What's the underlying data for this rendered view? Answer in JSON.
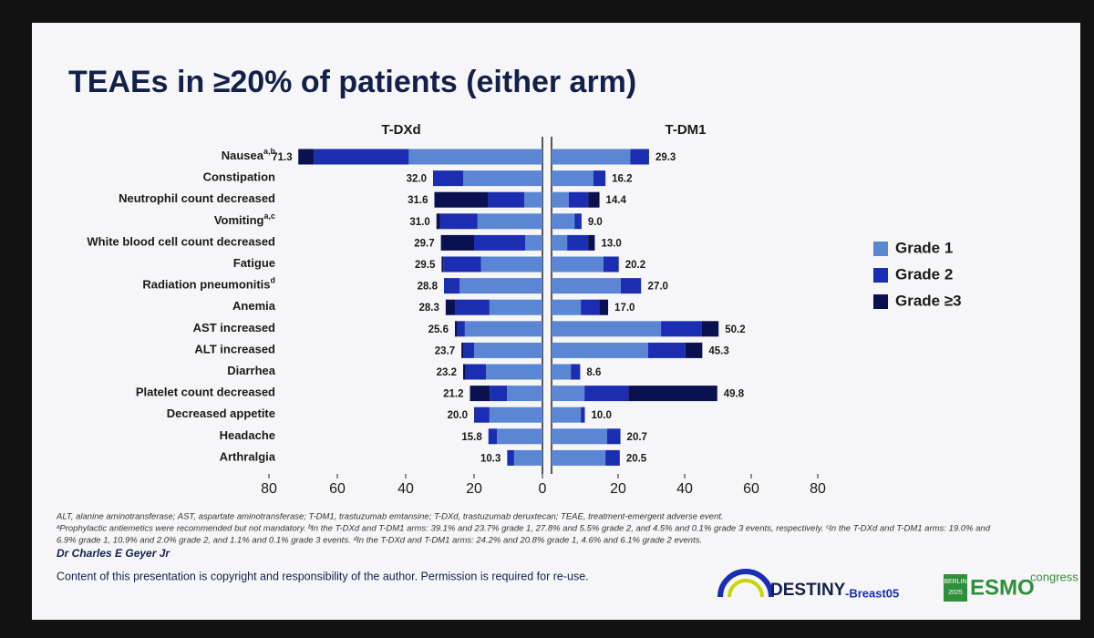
{
  "chart_data": {
    "type": "butterfly-stacked-bar",
    "title": "TEAEs in ≥20% of patients (either arm)",
    "categories": [
      "Nausea",
      "Constipation",
      "Neutrophil count decreased",
      "Vomiting",
      "White blood cell count decreased",
      "Fatigue",
      "Radiation pneumonitis",
      "Anemia",
      "AST increased",
      "ALT increased",
      "Diarrhea",
      "Platelet count decreased",
      "Decreased appetite",
      "Headache",
      "Arthralgia"
    ],
    "category_notes": [
      "a,b",
      null,
      null,
      "a,c",
      null,
      null,
      "d",
      null,
      null,
      null,
      null,
      null,
      null,
      null,
      null
    ],
    "series": [
      {
        "name": "Grade 1",
        "color": "#5a86d4"
      },
      {
        "name": "Grade 2",
        "color": "#1b2db0"
      },
      {
        "name": "Grade ≥3",
        "color": "#0b1050"
      }
    ],
    "panels": [
      {
        "title": "T-DXd",
        "direction": "left",
        "xlim": [
          0,
          80
        ],
        "xticks": [
          0,
          20,
          40,
          60,
          80
        ],
        "values": [
          [
            39.1,
            23.2,
            5.3,
            19.0,
            5.0,
            18.0,
            24.2,
            15.5,
            22.7,
            20.0,
            16.5,
            10.4,
            15.5,
            13.3,
            8.3
          ],
          [
            27.8,
            8.8,
            10.7,
            10.9,
            15.0,
            11.0,
            4.6,
            10.0,
            2.2,
            3.2,
            6.0,
            5.0,
            4.3,
            2.5,
            2.0
          ],
          [
            4.5,
            0,
            15.6,
            1.1,
            9.7,
            0.5,
            0,
            2.8,
            0.7,
            0.5,
            0.7,
            5.8,
            0.2,
            0,
            0
          ]
        ],
        "totals": [
          71.3,
          32.0,
          31.6,
          31.0,
          29.7,
          29.5,
          28.8,
          28.3,
          25.6,
          23.7,
          23.2,
          21.2,
          20.0,
          15.8,
          10.3
        ],
        "total_labels": [
          "71.3",
          "32.0",
          "31.6",
          "31.0",
          "29.7",
          "29.5",
          "28.8",
          "28.3",
          "25.6",
          "23.7",
          "23.2",
          "21.2",
          "20.0",
          "15.8",
          "10.3"
        ]
      },
      {
        "title": "T-DM1",
        "direction": "right",
        "xlim": [
          0,
          80
        ],
        "xticks": [
          20,
          40,
          60,
          80
        ],
        "values": [
          [
            23.7,
            12.6,
            5.2,
            6.9,
            4.7,
            15.6,
            20.8,
            8.8,
            32.9,
            29.0,
            5.8,
            9.9,
            8.8,
            16.7,
            16.2
          ],
          [
            5.5,
            3.6,
            5.8,
            2.0,
            6.3,
            4.6,
            6.1,
            5.5,
            12.3,
            11.2,
            2.8,
            13.2,
            1.2,
            4.0,
            4.3
          ],
          [
            0.1,
            0,
            3.4,
            0.1,
            2.0,
            0,
            0,
            2.7,
            5.0,
            5.1,
            0,
            26.7,
            0,
            0,
            0
          ]
        ],
        "totals": [
          29.3,
          16.2,
          14.4,
          9.0,
          13.0,
          20.2,
          27.0,
          17.0,
          50.2,
          45.3,
          8.6,
          49.8,
          10.0,
          20.7,
          20.5
        ],
        "total_labels": [
          "29.3",
          "16.2",
          "14.4",
          "9.0",
          "13.0",
          "20.2",
          "27.0",
          "17.0",
          "50.2",
          "45.3",
          "8.6",
          "49.8",
          "10.0",
          "20.7",
          "20.5"
        ]
      }
    ],
    "footnotes": [
      "ALT, alanine aminotransferase; AST, aspartate aminotransferase; T-DM1, trastuzumab emtansine; T-DXd, trastuzumab deruxtecan; TEAE, treatment-emergent adverse event.",
      "ᵃProphylactic antiemetics were recommended but not mandatory. ᵇIn the T-DXd and T-DM1 arms: 39.1% and 23.7% grade 1, 27.8% and 5.5% grade 2, and 4.5% and 0.1% grade 3 events, respectively. ᶜIn the T-DXd and T-DM1 arms: 19.0% and",
      "6.9% grade 1, 10.9% and 2.0% grade 2, and 1.1% and 0.1% grade 3 events. ᵈIn the T-DXd and T-DM1 arms: 24.2% and 20.8% grade 1, 4.6% and 6.1% grade 2 events."
    ],
    "presenter": "Dr Charles E Geyer Jr",
    "copyright": "Content of this presentation is copyright and responsibility of the author. Permission is required for re-use.",
    "logo_study": "DESTINY",
    "logo_study_suffix": "-Breast05",
    "logo_congress_city": "BERLIN",
    "logo_congress_year": "2025",
    "logo_congress": "ESMO",
    "logo_congress_suffix": "congress"
  }
}
